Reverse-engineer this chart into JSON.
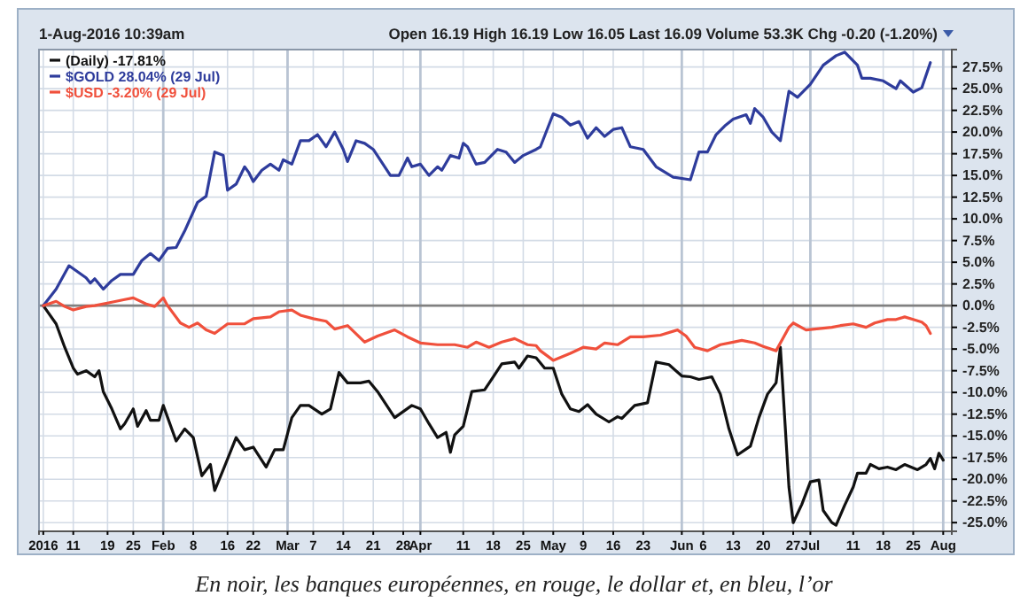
{
  "chart_data": {
    "type": "line",
    "xlim": [
      "2016-01-03",
      "2016-08-03"
    ],
    "ylim": [
      -26,
      29.5
    ],
    "xticks": [
      {
        "value": "2016-01-04",
        "label": "2016"
      },
      {
        "value": "2016-01-11",
        "label": "11"
      },
      {
        "value": "2016-01-19",
        "label": "19"
      },
      {
        "value": "2016-01-25",
        "label": "25"
      },
      {
        "value": "2016-02-01",
        "label": "Feb"
      },
      {
        "value": "2016-02-08",
        "label": "8"
      },
      {
        "value": "2016-02-16",
        "label": "16"
      },
      {
        "value": "2016-02-22",
        "label": "22"
      },
      {
        "value": "2016-03-01",
        "label": "Mar"
      },
      {
        "value": "2016-03-07",
        "label": "7"
      },
      {
        "value": "2016-03-14",
        "label": "14"
      },
      {
        "value": "2016-03-21",
        "label": "21"
      },
      {
        "value": "2016-03-28",
        "label": "28"
      },
      {
        "value": "2016-04-01",
        "label": "Apr"
      },
      {
        "value": "2016-04-11",
        "label": "11"
      },
      {
        "value": "2016-04-18",
        "label": "18"
      },
      {
        "value": "2016-04-25",
        "label": "25"
      },
      {
        "value": "2016-05-02",
        "label": "May"
      },
      {
        "value": "2016-05-09",
        "label": "9"
      },
      {
        "value": "2016-05-16",
        "label": "16"
      },
      {
        "value": "2016-05-23",
        "label": "23"
      },
      {
        "value": "2016-06-01",
        "label": "Jun"
      },
      {
        "value": "2016-06-06",
        "label": "6"
      },
      {
        "value": "2016-06-13",
        "label": "13"
      },
      {
        "value": "2016-06-20",
        "label": "20"
      },
      {
        "value": "2016-06-27",
        "label": "27"
      },
      {
        "value": "2016-07-01",
        "label": "Jul"
      },
      {
        "value": "2016-07-11",
        "label": "11"
      },
      {
        "value": "2016-07-18",
        "label": "18"
      },
      {
        "value": "2016-07-25",
        "label": "25"
      },
      {
        "value": "2016-08-01",
        "label": "Aug"
      }
    ],
    "yticks": [
      {
        "value": -25,
        "label": "-25.0%"
      },
      {
        "value": -22.5,
        "label": "-22.5%"
      },
      {
        "value": -20,
        "label": "-20.0%"
      },
      {
        "value": -17.5,
        "label": "-17.5%"
      },
      {
        "value": -15,
        "label": "-15.0%"
      },
      {
        "value": -12.5,
        "label": "-12.5%"
      },
      {
        "value": -10,
        "label": "-10.0%"
      },
      {
        "value": -7.5,
        "label": "-7.5%"
      },
      {
        "value": -5,
        "label": "-5.0%"
      },
      {
        "value": -2.5,
        "label": "-2.5%"
      },
      {
        "value": 0,
        "label": "0.0%"
      },
      {
        "value": 2.5,
        "label": "2.5%"
      },
      {
        "value": 5,
        "label": "5.0%"
      },
      {
        "value": 7.5,
        "label": "7.5%"
      },
      {
        "value": 10,
        "label": "10.0%"
      },
      {
        "value": 12.5,
        "label": "12.5%"
      },
      {
        "value": 15,
        "label": "15.0%"
      },
      {
        "value": 17.5,
        "label": "17.5%"
      },
      {
        "value": 20,
        "label": "20.0%"
      },
      {
        "value": 22.5,
        "label": "22.5%"
      },
      {
        "value": 25,
        "label": "25.0%"
      },
      {
        "value": 27.5,
        "label": "27.5%"
      }
    ],
    "grid": true,
    "legend": "top left",
    "line_style": "solid",
    "marker": "none",
    "ref_lines": [
      {
        "axis": "y",
        "value": 0,
        "color": "#808080"
      }
    ],
    "annotations": [
      "1-Aug-2016 10:39am",
      "Open 16.19 High 16.19 Low 16.05 Last 16.09 Volume 53.3K Chg -0.20 (-1.20%)",
      "En noir, les banques européennes, en rouge, le dollar et, en bleu, l’or"
    ],
    "series": [
      {
        "name": "(Daily) -17.81%",
        "color": "#111111",
        "x": [
          "2016-01-04",
          "2016-01-07",
          "2016-01-09",
          "2016-01-11",
          "2016-01-12",
          "2016-01-14",
          "2016-01-16",
          "2016-01-17",
          "2016-01-18",
          "2016-01-20",
          "2016-01-22",
          "2016-01-23",
          "2016-01-25",
          "2016-01-26",
          "2016-01-28",
          "2016-01-29",
          "2016-01-31",
          "2016-02-01",
          "2016-02-04",
          "2016-02-06",
          "2016-02-08",
          "2016-02-10",
          "2016-02-12",
          "2016-02-13",
          "2016-02-15",
          "2016-02-18",
          "2016-02-20",
          "2016-02-22",
          "2016-02-25",
          "2016-02-27",
          "2016-02-29",
          "2016-03-02",
          "2016-03-04",
          "2016-03-06",
          "2016-03-09",
          "2016-03-11",
          "2016-03-13",
          "2016-03-15",
          "2016-03-18",
          "2016-03-20",
          "2016-03-22",
          "2016-03-26",
          "2016-03-30",
          "2016-04-01",
          "2016-04-03",
          "2016-04-05",
          "2016-04-07",
          "2016-04-08",
          "2016-04-09",
          "2016-04-11",
          "2016-04-13",
          "2016-04-16",
          "2016-04-18",
          "2016-04-20",
          "2016-04-23",
          "2016-04-24",
          "2016-04-26",
          "2016-04-28",
          "2016-04-30",
          "2016-05-02",
          "2016-05-04",
          "2016-05-06",
          "2016-05-08",
          "2016-05-10",
          "2016-05-12",
          "2016-05-15",
          "2016-05-17",
          "2016-05-18",
          "2016-05-21",
          "2016-05-24",
          "2016-05-26",
          "2016-05-29",
          "2016-06-01",
          "2016-06-03",
          "2016-06-05",
          "2016-06-08",
          "2016-06-10",
          "2016-06-12",
          "2016-06-14",
          "2016-06-17",
          "2016-06-19",
          "2016-06-21",
          "2016-06-23",
          "2016-06-24",
          "2016-06-26",
          "2016-06-27",
          "2016-06-29",
          "2016-07-01",
          "2016-07-03",
          "2016-07-04",
          "2016-07-06",
          "2016-07-07",
          "2016-07-09",
          "2016-07-11",
          "2016-07-12",
          "2016-07-14",
          "2016-07-15",
          "2016-07-17",
          "2016-07-19",
          "2016-07-21",
          "2016-07-23",
          "2016-07-26",
          "2016-07-28",
          "2016-07-29",
          "2016-07-30",
          "2016-07-31",
          "2016-08-01"
        ],
        "values": [
          0,
          -2.1,
          -4.8,
          -7.2,
          -7.9,
          -7.5,
          -8.2,
          -7.5,
          -9.9,
          -11.9,
          -14.2,
          -13.6,
          -11.9,
          -13.9,
          -12.1,
          -13.2,
          -13.2,
          -11.5,
          -15.6,
          -14.2,
          -15.2,
          -19.6,
          -18.3,
          -21.3,
          -18.9,
          -15.2,
          -16.6,
          -16.3,
          -18.6,
          -16.6,
          -16.6,
          -12.9,
          -11.5,
          -11.5,
          -12.5,
          -11.9,
          -7.7,
          -8.9,
          -8.9,
          -8.7,
          -9.9,
          -12.9,
          -11.5,
          -11.9,
          -13.6,
          -15.2,
          -14.6,
          -16.9,
          -14.9,
          -13.9,
          -9.9,
          -9.7,
          -8.2,
          -6.7,
          -6.5,
          -7.2,
          -5.8,
          -6.0,
          -7.2,
          -7.2,
          -10.2,
          -11.9,
          -12.2,
          -11.4,
          -12.5,
          -13.4,
          -12.8,
          -13.0,
          -11.5,
          -11.2,
          -6.5,
          -6.8,
          -8.1,
          -8.2,
          -8.5,
          -8.2,
          -10.2,
          -14.2,
          -17.2,
          -16.2,
          -12.9,
          -10.2,
          -8.9,
          -4.8,
          -20.9,
          -25.0,
          -22.9,
          -20.3,
          -20.1,
          -23.6,
          -25.0,
          -25.3,
          -23.0,
          -20.9,
          -19.3,
          -19.3,
          -18.3,
          -18.8,
          -18.6,
          -18.9,
          -18.3,
          -18.9,
          -18.3,
          -17.6,
          -18.8,
          -17.0,
          -17.8
        ]
      },
      {
        "name": "$GOLD 28.04% (29 Jul)",
        "color": "#2e3c9c",
        "x": [
          "2016-01-04",
          "2016-01-07",
          "2016-01-10",
          "2016-01-14",
          "2016-01-15",
          "2016-01-16",
          "2016-01-18",
          "2016-01-20",
          "2016-01-22",
          "2016-01-25",
          "2016-01-27",
          "2016-01-29",
          "2016-01-31",
          "2016-02-02",
          "2016-02-04",
          "2016-02-06",
          "2016-02-09",
          "2016-02-11",
          "2016-02-13",
          "2016-02-15",
          "2016-02-16",
          "2016-02-18",
          "2016-02-20",
          "2016-02-21",
          "2016-02-22",
          "2016-02-24",
          "2016-02-26",
          "2016-02-28",
          "2016-02-29",
          "2016-03-02",
          "2016-03-04",
          "2016-03-06",
          "2016-03-08",
          "2016-03-10",
          "2016-03-12",
          "2016-03-14",
          "2016-03-15",
          "2016-03-17",
          "2016-03-19",
          "2016-03-21",
          "2016-03-25",
          "2016-03-27",
          "2016-03-29",
          "2016-03-30",
          "2016-04-01",
          "2016-04-03",
          "2016-04-05",
          "2016-04-06",
          "2016-04-08",
          "2016-04-10",
          "2016-04-11",
          "2016-04-12",
          "2016-04-14",
          "2016-04-16",
          "2016-04-19",
          "2016-04-21",
          "2016-04-23",
          "2016-04-25",
          "2016-04-28",
          "2016-04-29",
          "2016-05-02",
          "2016-05-04",
          "2016-05-06",
          "2016-05-08",
          "2016-05-10",
          "2016-05-12",
          "2016-05-14",
          "2016-05-16",
          "2016-05-18",
          "2016-05-20",
          "2016-05-23",
          "2016-05-26",
          "2016-05-30",
          "2016-06-03",
          "2016-06-05",
          "2016-06-07",
          "2016-06-09",
          "2016-06-11",
          "2016-06-13",
          "2016-06-16",
          "2016-06-17",
          "2016-06-18",
          "2016-06-20",
          "2016-06-22",
          "2016-06-24",
          "2016-06-26",
          "2016-06-28",
          "2016-07-01",
          "2016-07-04",
          "2016-07-07",
          "2016-07-09",
          "2016-07-12",
          "2016-07-13",
          "2016-07-15",
          "2016-07-18",
          "2016-07-21",
          "2016-07-22",
          "2016-07-25",
          "2016-07-27",
          "2016-07-29"
        ],
        "values": [
          0,
          1.9,
          4.6,
          3.2,
          2.6,
          3.1,
          1.9,
          2.9,
          3.6,
          3.6,
          5.2,
          6.0,
          5.2,
          6.6,
          6.7,
          8.6,
          11.9,
          12.6,
          17.7,
          17.3,
          13.3,
          14.0,
          16.0,
          15.3,
          14.3,
          15.6,
          16.3,
          15.6,
          16.8,
          16.3,
          19.0,
          19.0,
          19.7,
          18.3,
          20.0,
          18.0,
          16.6,
          19.0,
          18.7,
          18.0,
          15.0,
          15.0,
          17.0,
          16.0,
          16.3,
          15.0,
          16.0,
          15.6,
          17.3,
          17.0,
          18.7,
          18.3,
          16.3,
          16.5,
          18.0,
          17.7,
          16.5,
          17.3,
          18.0,
          18.3,
          22.1,
          21.7,
          20.8,
          21.2,
          19.3,
          20.5,
          19.5,
          20.3,
          20.5,
          18.3,
          18.0,
          16.0,
          14.8,
          14.5,
          17.7,
          17.7,
          19.7,
          20.7,
          21.5,
          22.0,
          21.0,
          22.7,
          21.7,
          20.0,
          19.0,
          24.7,
          24.0,
          25.5,
          27.7,
          28.8,
          29.2,
          27.7,
          26.2,
          26.2,
          25.9,
          25.0,
          25.9,
          24.6,
          25.1,
          28.0
        ]
      },
      {
        "name": "$USD -3.20% (29 Jul)",
        "color": "#f0503c",
        "x": [
          "2016-01-04",
          "2016-01-07",
          "2016-01-09",
          "2016-01-11",
          "2016-01-14",
          "2016-01-16",
          "2016-01-20",
          "2016-01-23",
          "2016-01-25",
          "2016-01-28",
          "2016-01-30",
          "2016-02-01",
          "2016-02-02",
          "2016-02-05",
          "2016-02-07",
          "2016-02-09",
          "2016-02-11",
          "2016-02-13",
          "2016-02-16",
          "2016-02-20",
          "2016-02-22",
          "2016-02-26",
          "2016-02-28",
          "2016-03-02",
          "2016-03-04",
          "2016-03-07",
          "2016-03-10",
          "2016-03-12",
          "2016-03-15",
          "2016-03-19",
          "2016-03-22",
          "2016-03-26",
          "2016-03-29",
          "2016-04-01",
          "2016-04-05",
          "2016-04-09",
          "2016-04-12",
          "2016-04-14",
          "2016-04-17",
          "2016-04-20",
          "2016-04-23",
          "2016-04-26",
          "2016-04-28",
          "2016-04-29",
          "2016-05-02",
          "2016-05-06",
          "2016-05-09",
          "2016-05-12",
          "2016-05-14",
          "2016-05-17",
          "2016-05-20",
          "2016-05-23",
          "2016-05-27",
          "2016-05-31",
          "2016-06-02",
          "2016-06-04",
          "2016-06-07",
          "2016-06-10",
          "2016-06-13",
          "2016-06-15",
          "2016-06-18",
          "2016-06-20",
          "2016-06-23",
          "2016-06-26",
          "2016-06-27",
          "2016-06-30",
          "2016-07-02",
          "2016-07-06",
          "2016-07-08",
          "2016-07-11",
          "2016-07-14",
          "2016-07-16",
          "2016-07-19",
          "2016-07-21",
          "2016-07-23",
          "2016-07-25",
          "2016-07-27",
          "2016-07-28",
          "2016-07-29"
        ],
        "values": [
          0,
          0.5,
          -0.1,
          -0.5,
          -0.1,
          0,
          0.4,
          0.7,
          0.9,
          0.2,
          -0.1,
          0.9,
          0,
          -2.0,
          -2.5,
          -2.0,
          -2.8,
          -3.2,
          -2.1,
          -2.1,
          -1.5,
          -1.3,
          -0.7,
          -0.5,
          -1.1,
          -1.5,
          -1.8,
          -2.7,
          -2.3,
          -4.2,
          -3.5,
          -2.8,
          -3.6,
          -4.3,
          -4.5,
          -4.5,
          -4.8,
          -4.2,
          -4.8,
          -4.2,
          -3.8,
          -4.5,
          -4.6,
          -5.2,
          -6.3,
          -5.5,
          -4.8,
          -5.0,
          -4.3,
          -4.5,
          -3.6,
          -3.6,
          -3.4,
          -2.8,
          -3.5,
          -4.8,
          -5.2,
          -4.5,
          -4.2,
          -4.0,
          -4.3,
          -4.7,
          -5.2,
          -2.5,
          -2.0,
          -2.8,
          -2.7,
          -2.5,
          -2.3,
          -2.1,
          -2.5,
          -2.0,
          -1.6,
          -1.6,
          -1.3,
          -1.6,
          -1.9,
          -2.3,
          -3.2
        ]
      }
    ]
  }
}
